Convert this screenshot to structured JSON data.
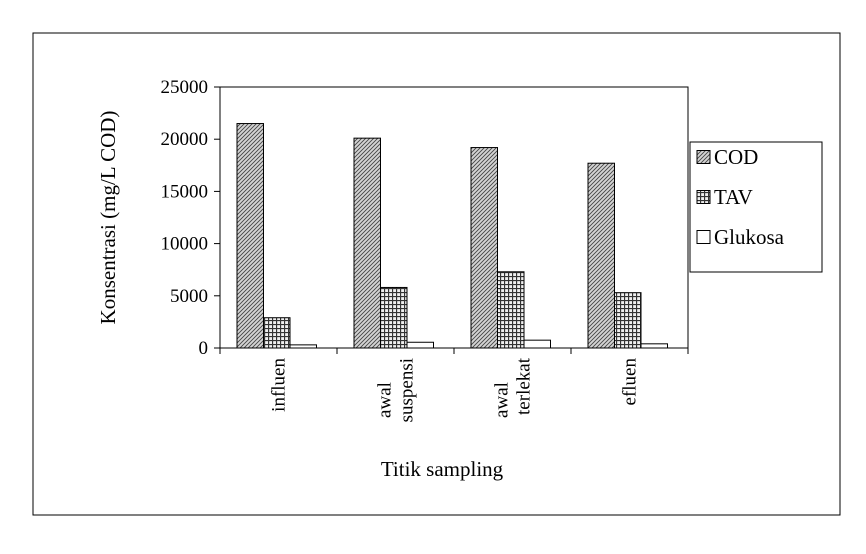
{
  "chart_data": {
    "type": "bar",
    "title": "",
    "xlabel": "Titik sampling",
    "ylabel": "Konsentrasi (mg/L COD)",
    "ylim": [
      0,
      25000
    ],
    "yticks": [
      0,
      5000,
      10000,
      15000,
      20000,
      25000
    ],
    "grid": false,
    "legend": "right",
    "categories": [
      [
        "influen"
      ],
      [
        "awal",
        "suspensi"
      ],
      [
        "awal",
        "terlekat"
      ],
      [
        "efluen"
      ]
    ],
    "series": [
      {
        "name": "COD",
        "pattern": "diagonal-hatch",
        "values": [
          21500,
          20100,
          19200,
          17700
        ]
      },
      {
        "name": "TAV",
        "pattern": "cross-hatch",
        "values": [
          2900,
          5800,
          7300,
          5300
        ]
      },
      {
        "name": "Glukosa",
        "pattern": "white",
        "values": [
          300,
          550,
          750,
          400
        ]
      }
    ]
  }
}
